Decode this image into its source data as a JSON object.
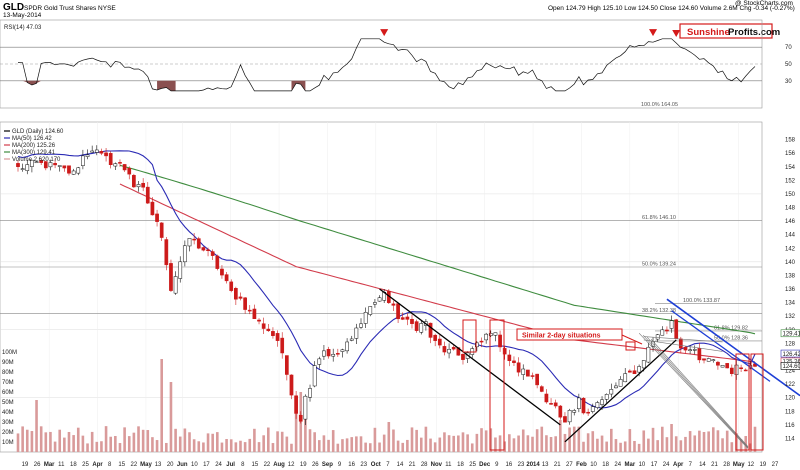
{
  "header": {
    "symbol": "GLD",
    "description": "SPDR Gold Trust Shares NYSE",
    "date": "13-May-2014",
    "quote": "Open 124.79  High 125.10  Low 124.50  Close 124.60  Volume 2.6M  Chg -0.34 (-0.27%)",
    "copyright": "@ StockCharts.com",
    "brand_part1": "Sunshine",
    "brand_part2": "Profits.com"
  },
  "colors": {
    "ma50": "#2b2bb5",
    "ma200": "#d23c4b",
    "ma300": "#3f8c3f",
    "rsi_line": "#111111",
    "rsi_fill": "#8a5050",
    "up_candle": "#ffffff",
    "down_candle": "#cc1a1a",
    "volume": "#d99a9a",
    "brand_red": "#d41a1a",
    "highlight": "#d41a1a",
    "trend_blue": "#1e3fd6"
  },
  "chart_data": [
    {
      "type": "line",
      "title": "RSI(14) 47.03",
      "series": [
        {
          "name": "RSI(14)",
          "last": 47.03
        }
      ],
      "ylim": [
        0,
        100
      ],
      "y_ticks": [
        30,
        50,
        70
      ],
      "levels": [
        30,
        50,
        70
      ],
      "annotations": [
        "100.0% 164.05"
      ],
      "arrows_at": [
        "Sep 2013",
        "Mar 2014",
        "Mar 2014 (late)"
      ]
    },
    {
      "type": "candlestick",
      "title": "GLD (Daily) 124.60",
      "ylim": [
        112,
        160
      ],
      "y_ticks": [
        114,
        116,
        118,
        120,
        122,
        124,
        126,
        128,
        130,
        132,
        134,
        136,
        138,
        140,
        142,
        144,
        146,
        148,
        150,
        152,
        154,
        156,
        158
      ],
      "volume_ticks": [
        "10M",
        "20M",
        "30M",
        "40M",
        "50M",
        "60M",
        "70M",
        "80M",
        "90M",
        "100M"
      ],
      "x_ticks": [
        "19",
        "26",
        "Mar",
        "11",
        "18",
        "25",
        "Apr",
        "8",
        "15",
        "22",
        "May",
        "13",
        "20",
        "Jun",
        "10",
        "17",
        "24",
        "Jul",
        "8",
        "15",
        "22",
        "Aug",
        "12",
        "19",
        "26",
        "Sep",
        "9",
        "16",
        "23",
        "Oct",
        "7",
        "14",
        "21",
        "28",
        "Nov",
        "11",
        "18",
        "25",
        "Dec",
        "9",
        "16",
        "23",
        "2014",
        "13",
        "21",
        "27",
        "Feb",
        "10",
        "18",
        "24",
        "Mar",
        "10",
        "17",
        "24",
        "Apr",
        "7",
        "14",
        "21",
        "28",
        "May",
        "12",
        "19",
        "27"
      ],
      "legend": [
        {
          "label": "GLD (Daily) 124.60"
        },
        {
          "label": "MA(50) 126.42"
        },
        {
          "label": "MA(200) 125.26"
        },
        {
          "label": "MA(300) 129.41"
        },
        {
          "label": "Volume 2,620,170"
        }
      ],
      "series": [
        {
          "name": "MA(50)",
          "last": 126.42
        },
        {
          "name": "MA(200)",
          "last": 125.26
        },
        {
          "name": "MA(300)",
          "last": 129.41
        }
      ],
      "fib_levels": [
        {
          "label": "61.8% 146.10",
          "value": 146.1
        },
        {
          "label": "50.0% 139.24",
          "value": 139.24
        },
        {
          "label": "38.2% 132.38",
          "value": 132.38
        },
        {
          "label": "100.0% 133.87",
          "value": 133.87
        },
        {
          "label": "61.8% 129.82",
          "value": 129.82
        },
        {
          "label": "50.0% 128.36",
          "value": 128.36
        }
      ],
      "price_labels": [
        "129.41",
        "126.42",
        "125.26",
        "124.60"
      ],
      "annotation": "Similar 2-day situations",
      "close_path": [
        [
          0,
          153.8
        ],
        [
          4,
          154.5
        ],
        [
          8,
          154
        ],
        [
          12,
          153
        ],
        [
          14,
          155.5
        ],
        [
          16,
          156.7
        ],
        [
          18,
          155.5
        ],
        [
          20,
          154.8
        ],
        [
          22,
          154.2
        ],
        [
          24,
          153.2
        ],
        [
          25,
          151.2
        ],
        [
          27,
          150.5
        ],
        [
          29,
          147
        ],
        [
          31,
          144
        ],
        [
          33,
          136
        ],
        [
          35,
          140
        ],
        [
          37,
          143.5
        ],
        [
          40,
          141.8
        ],
        [
          42,
          140.5
        ],
        [
          44,
          138
        ],
        [
          46,
          135.5
        ],
        [
          48,
          134.5
        ],
        [
          50,
          132.5
        ],
        [
          52,
          131
        ],
        [
          54,
          130
        ],
        [
          56,
          128.5
        ],
        [
          57,
          126
        ],
        [
          58,
          123.5
        ],
        [
          59,
          121
        ],
        [
          60,
          118
        ],
        [
          61,
          117
        ],
        [
          62,
          120
        ],
        [
          63,
          122
        ],
        [
          64,
          125
        ],
        [
          66,
          127
        ],
        [
          68,
          126
        ],
        [
          70,
          127
        ],
        [
          72,
          128.5
        ],
        [
          74,
          131.5
        ],
        [
          76,
          133.5
        ],
        [
          78,
          134.5
        ],
        [
          79,
          135.8
        ],
        [
          80,
          134
        ],
        [
          82,
          132
        ],
        [
          84,
          131
        ],
        [
          86,
          130.5
        ],
        [
          88,
          131
        ],
        [
          89,
          129
        ],
        [
          90,
          128
        ],
        [
          92,
          127
        ],
        [
          94,
          126.5
        ],
        [
          96,
          126
        ],
        [
          98,
          127
        ],
        [
          100,
          128.2
        ],
        [
          102,
          130
        ],
        [
          104,
          128
        ],
        [
          106,
          125.5
        ],
        [
          108,
          124
        ],
        [
          110,
          123.5
        ],
        [
          112,
          122
        ],
        [
          114,
          120
        ],
        [
          116,
          118.5
        ],
        [
          117,
          116.7
        ],
        [
          118,
          116
        ],
        [
          119,
          117.5
        ],
        [
          120,
          118
        ],
        [
          121,
          119.5
        ],
        [
          122,
          118
        ],
        [
          124,
          119
        ],
        [
          126,
          119.5
        ],
        [
          128,
          121
        ],
        [
          130,
          122.5
        ],
        [
          132,
          123.5
        ],
        [
          134,
          124.5
        ],
        [
          136,
          127.2
        ],
        [
          138,
          129.5
        ],
        [
          140,
          130
        ],
        [
          141,
          131.5
        ],
        [
          142,
          129
        ],
        [
          143,
          127.5
        ],
        [
          144,
          127.5
        ],
        [
          146,
          126.5
        ],
        [
          147,
          125.3
        ],
        [
          148,
          125.5
        ],
        [
          150,
          125.2
        ],
        [
          152,
          124.8
        ],
        [
          154,
          124
        ],
        [
          156,
          124.6
        ],
        [
          158,
          124.6
        ],
        [
          159,
          124.6
        ]
      ]
    }
  ]
}
